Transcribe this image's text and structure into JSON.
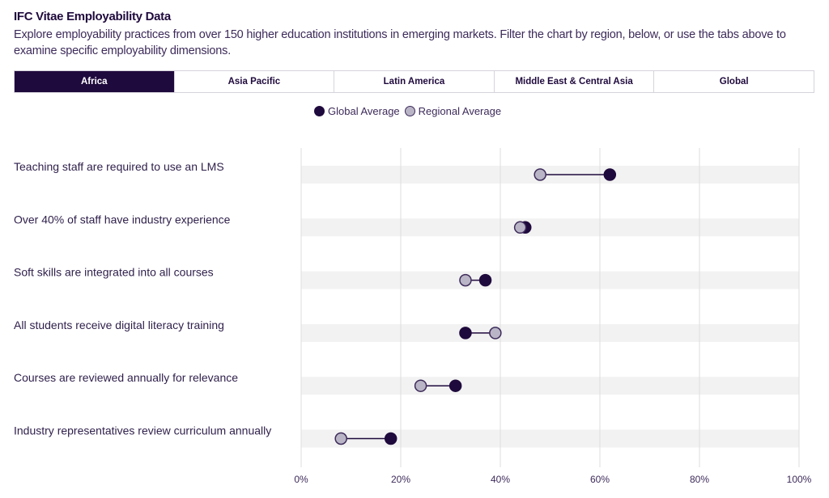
{
  "header": {
    "title": "IFC Vitae Employability Data",
    "description": "Explore employability practices from over 150 higher education institutions in emerging markets. Filter the chart by region, below, or use the tabs above to examine specific employability dimensions."
  },
  "tabs": [
    {
      "label": "Africa",
      "active": true
    },
    {
      "label": "Asia Pacific"
    },
    {
      "label": "Latin America"
    },
    {
      "label": "Middle East & Central Asia"
    },
    {
      "label": "Global"
    }
  ],
  "colors": {
    "global": "#1f0a3d",
    "regional": "#b9b5c6",
    "band": "#f2f2f2",
    "grid": "#dddddd"
  },
  "chart_data": {
    "type": "dumbbell",
    "legend": [
      "Global Average",
      "Regional Average"
    ],
    "legend_position": "top-center",
    "xlim": [
      0,
      100
    ],
    "xticks": [
      "0%",
      "20%",
      "40%",
      "60%",
      "80%",
      "100%"
    ],
    "categories": [
      "Teaching staff are required to use an LMS",
      "Over 40% of staff have industry experience",
      "Soft skills are integrated into all courses",
      "All students receive digital literacy training",
      "Courses are reviewed annually for relevance",
      "Industry representatives review curriculum annually"
    ],
    "series": [
      {
        "name": "Global Average",
        "values": [
          62,
          45,
          37,
          33,
          31,
          18
        ]
      },
      {
        "name": "Regional Average",
        "values": [
          48,
          44,
          33,
          39,
          24,
          8
        ]
      }
    ]
  }
}
